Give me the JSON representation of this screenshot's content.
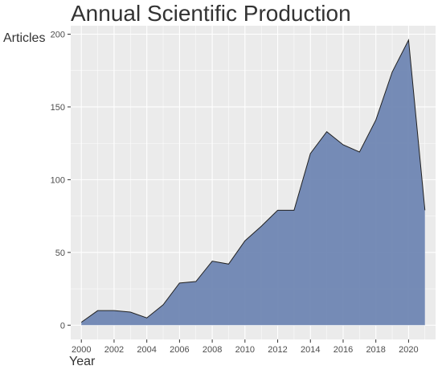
{
  "chart_data": {
    "type": "area",
    "title": "Annual Scientific Production",
    "xlabel": "Year",
    "ylabel": "Articles",
    "x": [
      2000,
      2001,
      2002,
      2003,
      2004,
      2005,
      2006,
      2007,
      2008,
      2009,
      2010,
      2011,
      2012,
      2013,
      2014,
      2015,
      2016,
      2017,
      2018,
      2019,
      2020,
      2021
    ],
    "values": [
      2,
      10,
      10,
      9,
      5,
      14,
      29,
      30,
      44,
      42,
      58,
      68,
      79,
      79,
      118,
      133,
      124,
      119,
      141,
      174,
      196,
      79
    ],
    "xticks": [
      "2000",
      "2002",
      "2004",
      "2006",
      "2008",
      "2010",
      "2012",
      "2014",
      "2016",
      "2018",
      "2020"
    ],
    "yticks": [
      "0",
      "50",
      "100",
      "150",
      "200"
    ],
    "xlim": [
      1999.35,
      2021.65
    ],
    "ylim": [
      -9.8,
      205.8
    ],
    "grid": true,
    "legend": "none",
    "colors": {
      "fill": "#6f86b3",
      "line": "#222222",
      "panel": "#ebebeb",
      "grid": "#ffffff"
    }
  }
}
